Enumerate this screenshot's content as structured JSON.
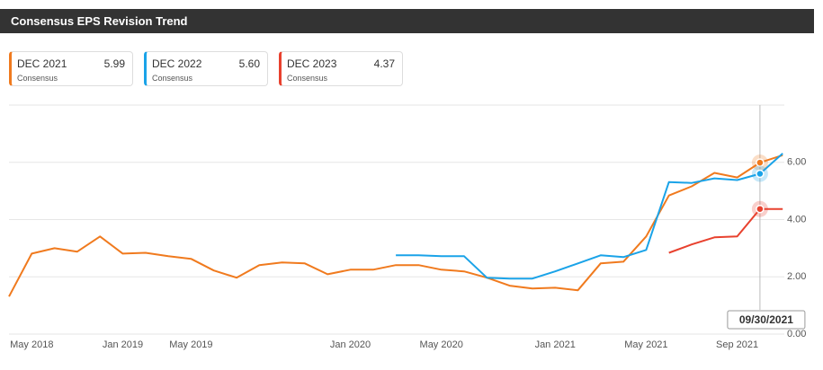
{
  "chart_data": {
    "type": "line",
    "title": "Consensus EPS Revision Trend",
    "categories": [
      null,
      "May 2018",
      null,
      null,
      null,
      "Jan 2019",
      null,
      null,
      "May 2019",
      null,
      null,
      null,
      null,
      null,
      null,
      "Jan 2020",
      null,
      null,
      null,
      "May 2020",
      null,
      null,
      null,
      null,
      "Jan 2021",
      null,
      null,
      null,
      "May 2021",
      null,
      null,
      null,
      "Sep 2021",
      null,
      null
    ],
    "series": [
      {
        "name": "DEC 2021",
        "legend_value": "5.99",
        "legend_note": "Consensus",
        "color": "#f07a1e",
        "values": [
          1.31,
          2.81,
          3.0,
          2.88,
          3.41,
          2.81,
          2.84,
          2.72,
          2.63,
          2.22,
          1.97,
          2.41,
          2.5,
          2.47,
          2.09,
          2.25,
          2.25,
          2.41,
          2.41,
          2.25,
          2.19,
          1.97,
          1.69,
          1.59,
          1.62,
          1.53,
          2.47,
          2.53,
          3.41,
          4.84,
          5.16,
          5.63,
          5.47,
          5.99,
          6.25
        ]
      },
      {
        "name": "DEC 2022",
        "legend_value": "5.60",
        "legend_note": "Consensus",
        "color": "#1aa3e8",
        "values": [
          null,
          null,
          null,
          null,
          null,
          null,
          null,
          null,
          null,
          null,
          null,
          null,
          null,
          null,
          null,
          null,
          null,
          2.75,
          2.75,
          2.72,
          2.72,
          1.97,
          1.94,
          1.94,
          2.19,
          2.47,
          2.75,
          2.69,
          2.94,
          5.31,
          5.28,
          5.44,
          5.38,
          5.6,
          6.31
        ]
      },
      {
        "name": "DEC 2023",
        "legend_value": "4.37",
        "legend_note": "Consensus",
        "color": "#e8412e",
        "values": [
          null,
          null,
          null,
          null,
          null,
          null,
          null,
          null,
          null,
          null,
          null,
          null,
          null,
          null,
          null,
          null,
          null,
          null,
          null,
          null,
          null,
          null,
          null,
          null,
          null,
          null,
          null,
          null,
          null,
          2.84,
          3.13,
          3.38,
          3.41,
          4.37,
          4.37
        ]
      }
    ],
    "ylim": [
      0,
      8
    ],
    "yticks": [
      {
        "value": 0,
        "label": "0.00"
      },
      {
        "value": 2,
        "label": "2.00"
      },
      {
        "value": 4,
        "label": "4.00"
      },
      {
        "value": 6,
        "label": "6.00"
      }
    ],
    "grid": true,
    "crosshair_index": 33,
    "crosshair_label": "09/30/2021"
  }
}
